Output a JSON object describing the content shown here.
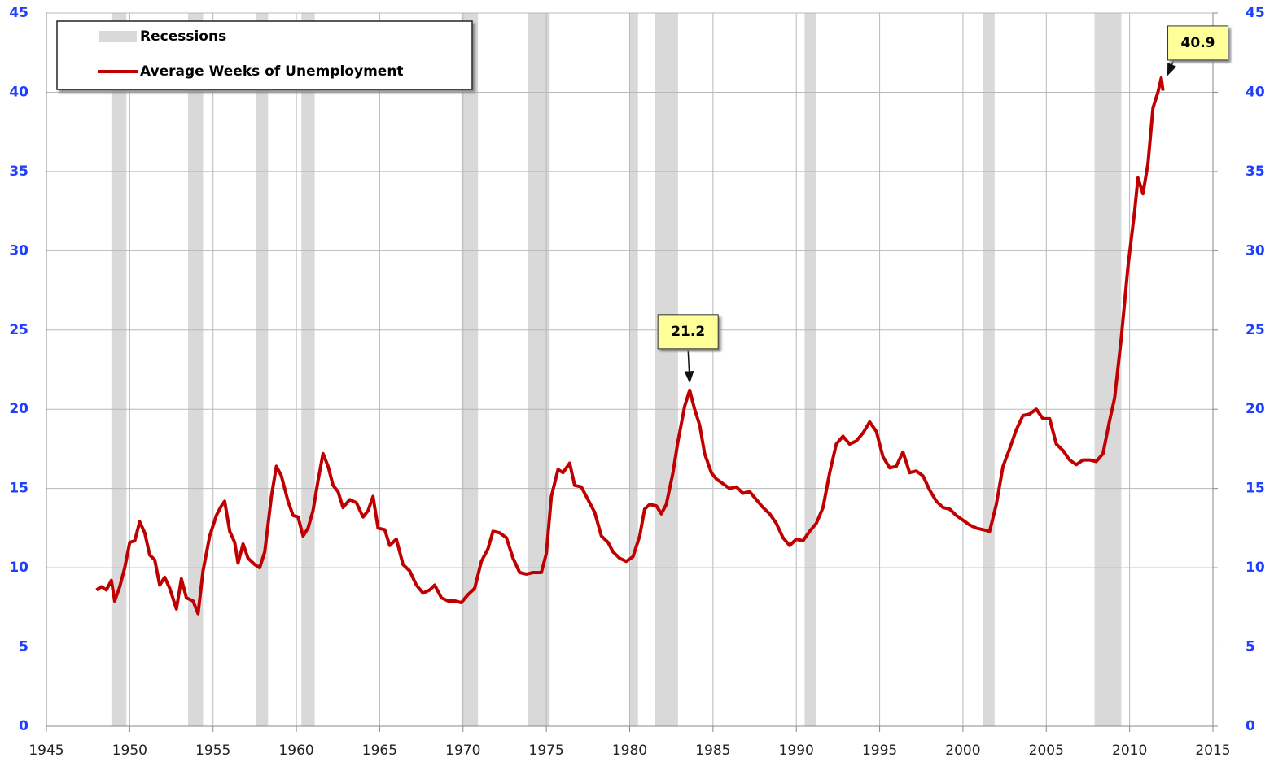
{
  "chart_data": {
    "type": "line",
    "x": [
      1948.0,
      1948.3,
      1948.6,
      1948.9,
      1949.1,
      1949.4,
      1949.7,
      1950.0,
      1950.3,
      1950.6,
      1950.9,
      1951.2,
      1951.5,
      1951.8,
      1952.1,
      1952.4,
      1952.8,
      1953.1,
      1953.4,
      1953.8,
      1954.1,
      1954.4,
      1954.8,
      1955.2,
      1955.5,
      1955.7,
      1956.0,
      1956.3,
      1956.5,
      1956.8,
      1957.1,
      1957.5,
      1957.8,
      1958.1,
      1958.5,
      1958.8,
      1959.1,
      1959.5,
      1959.8,
      1960.1,
      1960.4,
      1960.7,
      1961.0,
      1961.3,
      1961.6,
      1961.9,
      1962.2,
      1962.5,
      1962.8,
      1963.2,
      1963.6,
      1964.0,
      1964.3,
      1964.6,
      1964.9,
      1965.3,
      1965.6,
      1966.0,
      1966.4,
      1966.8,
      1967.2,
      1967.6,
      1968.0,
      1968.3,
      1968.7,
      1969.1,
      1969.5,
      1969.9,
      1970.3,
      1970.7,
      1971.1,
      1971.5,
      1971.8,
      1972.2,
      1972.6,
      1973.0,
      1973.4,
      1973.8,
      1974.2,
      1974.7,
      1975.0,
      1975.3,
      1975.7,
      1976.0,
      1976.4,
      1976.7,
      1977.1,
      1977.5,
      1977.9,
      1978.3,
      1978.7,
      1979.0,
      1979.4,
      1979.8,
      1980.2,
      1980.6,
      1980.9,
      1981.2,
      1981.6,
      1981.9,
      1982.2,
      1982.6,
      1982.9,
      1983.3,
      1983.6,
      1983.9,
      1984.2,
      1984.5,
      1984.9,
      1985.2,
      1985.6,
      1986.0,
      1986.4,
      1986.8,
      1987.2,
      1987.6,
      1988.0,
      1988.4,
      1988.8,
      1989.2,
      1989.6,
      1990.0,
      1990.4,
      1990.8,
      1991.2,
      1991.6,
      1992.0,
      1992.4,
      1992.8,
      1993.2,
      1993.6,
      1994.0,
      1994.4,
      1994.8,
      1995.2,
      1995.6,
      1996.0,
      1996.4,
      1996.8,
      1997.2,
      1997.6,
      1998.0,
      1998.4,
      1998.8,
      1999.2,
      1999.6,
      2000.0,
      2000.4,
      2000.8,
      2001.2,
      2001.6,
      2002.0,
      2002.4,
      2002.8,
      2003.2,
      2003.6,
      2004.0,
      2004.4,
      2004.8,
      2005.2,
      2005.6,
      2006.0,
      2006.4,
      2006.8,
      2007.2,
      2007.6,
      2008.0,
      2008.4,
      2008.8,
      2009.1,
      2009.5,
      2009.9,
      2010.3,
      2010.5,
      2010.8,
      2011.1,
      2011.4,
      2011.7,
      2011.9,
      2012.0
    ],
    "series": [
      {
        "name": "Average Weeks of Unemployment",
        "color": "#c00000",
        "values": [
          8.6,
          8.8,
          8.6,
          9.2,
          7.9,
          8.8,
          10.0,
          11.6,
          11.7,
          12.9,
          12.2,
          10.8,
          10.5,
          8.9,
          9.4,
          8.7,
          7.4,
          9.3,
          8.1,
          7.9,
          7.1,
          9.8,
          12.0,
          13.3,
          13.9,
          14.2,
          12.3,
          11.6,
          10.3,
          11.5,
          10.6,
          10.2,
          10.0,
          11.0,
          14.5,
          16.4,
          15.8,
          14.2,
          13.3,
          13.2,
          12.0,
          12.5,
          13.6,
          15.5,
          17.2,
          16.4,
          15.2,
          14.8,
          13.8,
          14.3,
          14.1,
          13.2,
          13.6,
          14.5,
          12.5,
          12.4,
          11.4,
          11.8,
          10.2,
          9.8,
          8.9,
          8.4,
          8.6,
          8.9,
          8.1,
          7.9,
          7.9,
          7.8,
          8.3,
          8.7,
          10.4,
          11.2,
          12.3,
          12.2,
          11.9,
          10.6,
          9.7,
          9.6,
          9.7,
          9.7,
          10.9,
          14.5,
          16.2,
          16.0,
          16.6,
          15.2,
          15.1,
          14.3,
          13.5,
          12.0,
          11.6,
          11.0,
          10.6,
          10.4,
          10.7,
          12.0,
          13.7,
          14.0,
          13.9,
          13.4,
          14.0,
          16.0,
          18.0,
          20.2,
          21.2,
          20.0,
          19.0,
          17.2,
          16.0,
          15.6,
          15.3,
          15.0,
          15.1,
          14.7,
          14.8,
          14.3,
          13.8,
          13.4,
          12.8,
          11.9,
          11.4,
          11.8,
          11.7,
          12.3,
          12.8,
          13.8,
          16.0,
          17.8,
          18.3,
          17.8,
          18.0,
          18.5,
          19.2,
          18.6,
          17.0,
          16.3,
          16.4,
          17.3,
          16.0,
          16.1,
          15.8,
          14.9,
          14.2,
          13.8,
          13.7,
          13.3,
          13.0,
          12.7,
          12.5,
          12.4,
          12.3,
          14.0,
          16.4,
          17.5,
          18.7,
          19.6,
          19.7,
          20.0,
          19.4,
          19.4,
          17.8,
          17.4,
          16.8,
          16.5,
          16.8,
          16.8,
          16.7,
          17.2,
          19.3,
          20.7,
          24.5,
          29.0,
          32.5,
          34.6,
          33.6,
          35.5,
          39.0,
          40.0,
          40.9,
          40.1
        ]
      }
    ],
    "recessions": {
      "name": "Recessions",
      "color": "#d9d9d9",
      "ranges": [
        [
          1948.9,
          1949.8
        ],
        [
          1953.5,
          1954.4
        ],
        [
          1957.6,
          1958.3
        ],
        [
          1960.3,
          1961.1
        ],
        [
          1969.9,
          1970.9
        ],
        [
          1973.9,
          1975.2
        ],
        [
          1980.0,
          1980.5
        ],
        [
          1981.5,
          1982.9
        ],
        [
          1990.5,
          1991.2
        ],
        [
          2001.2,
          2001.9
        ],
        [
          2007.9,
          2009.5
        ]
      ]
    },
    "annotations": [
      {
        "x": 1983.6,
        "value": 21.2
      },
      {
        "x": 2011.9,
        "value": 40.9
      }
    ],
    "xlim": [
      1945,
      2015
    ],
    "xticks": [
      1945,
      1950,
      1955,
      1960,
      1965,
      1970,
      1975,
      1980,
      1985,
      1990,
      1995,
      2000,
      2005,
      2010,
      2015
    ],
    "ylim": [
      0,
      45
    ],
    "yticks": [
      0,
      5,
      10,
      15,
      20,
      25,
      30,
      35,
      40,
      45
    ],
    "y2lim": [
      0,
      45
    ],
    "y2ticks": [
      0,
      5,
      10,
      15,
      20,
      25,
      30,
      35,
      40,
      45
    ],
    "grid": true,
    "legend": "upper left"
  }
}
